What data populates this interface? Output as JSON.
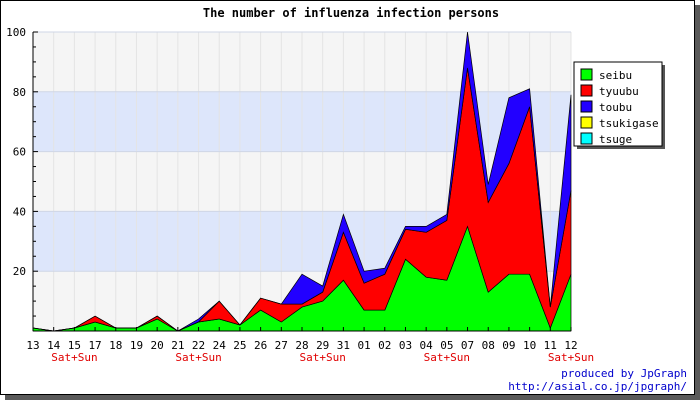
{
  "chart_data": {
    "type": "area",
    "stacked": true,
    "title": "The number of influenza infection persons",
    "xlabel": "",
    "ylabel": "",
    "ylim": [
      0,
      100
    ],
    "yticks": [
      20,
      40,
      60,
      80,
      100
    ],
    "y_minor_step": 5,
    "grid": true,
    "band_color": "#dde6fb",
    "plot_background": "#f5f5f5",
    "legend_position": "top-right",
    "categories": [
      "13",
      "14",
      "15",
      "17",
      "18",
      "19",
      "20",
      "21",
      "22",
      "24",
      "25",
      "26",
      "27",
      "28",
      "29",
      "31",
      "01",
      "02",
      "03",
      "04",
      "05",
      "07",
      "08",
      "09",
      "10",
      "11",
      "12"
    ],
    "weekend_marks": [
      {
        "index": 2,
        "label": "Sat+Sun"
      },
      {
        "index": 8,
        "label": "Sat+Sun"
      },
      {
        "index": 14,
        "label": "Sat+Sun"
      },
      {
        "index": 20,
        "label": "Sat+Sun"
      },
      {
        "index": 26,
        "label": "Sat+Sun"
      }
    ],
    "series": [
      {
        "name": "seibu",
        "color": "#00ff00",
        "values": [
          1,
          0,
          1,
          3,
          1,
          1,
          4,
          0,
          3,
          4,
          2,
          7,
          3,
          8,
          10,
          17,
          7,
          7,
          24,
          18,
          17,
          35,
          13,
          19,
          19,
          1,
          19
        ]
      },
      {
        "name": "tyuubu",
        "color": "#ff0000",
        "values": [
          0,
          0,
          0,
          2,
          0,
          0,
          1,
          0,
          0,
          6,
          0,
          4,
          6,
          1,
          3,
          16,
          9,
          12,
          10,
          15,
          20,
          53,
          30,
          37,
          56,
          7,
          28
        ]
      },
      {
        "name": "toubu",
        "color": "#2200ff",
        "values": [
          0,
          0,
          0,
          0,
          0,
          0,
          0,
          0,
          1,
          0,
          0,
          0,
          0,
          10,
          2,
          6,
          4,
          2,
          1,
          2,
          2,
          12,
          6,
          22,
          6,
          0,
          32
        ]
      },
      {
        "name": "tsukigase",
        "color": "#ffff00",
        "values": [
          0,
          0,
          0,
          0,
          0,
          0,
          0,
          0,
          0,
          0,
          0,
          0,
          0,
          0,
          0,
          0,
          0,
          0,
          0,
          0,
          0,
          0,
          0,
          0,
          0,
          0,
          0
        ]
      },
      {
        "name": "tsuge",
        "color": "#00ffff",
        "values": [
          0,
          0,
          0,
          0,
          0,
          0,
          0,
          0,
          0,
          0,
          0,
          0,
          0,
          0,
          0,
          0,
          0,
          0,
          0,
          0,
          0,
          0,
          0,
          0,
          0,
          0,
          0
        ]
      }
    ]
  },
  "credit": {
    "line1": "produced by JpGraph",
    "line2": "http://asial.co.jp/jpgraph/"
  }
}
